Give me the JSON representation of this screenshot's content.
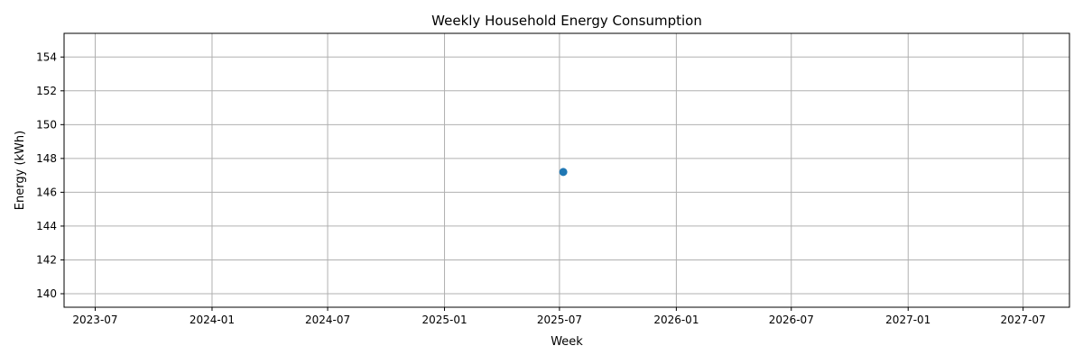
{
  "chart_data": {
    "type": "scatter",
    "title": "Weekly Household Energy Consumption",
    "xlabel": "Week",
    "ylabel": "Energy (kWh)",
    "x_type": "date",
    "xlim": [
      "2023-05-13",
      "2027-09-12"
    ],
    "ylim": [
      139.2,
      155.4
    ],
    "x_ticks": [
      "2023-07-01",
      "2024-01-01",
      "2024-07-01",
      "2025-01-01",
      "2025-07-01",
      "2026-01-01",
      "2026-07-01",
      "2027-01-01",
      "2027-07-01"
    ],
    "x_tick_labels": [
      "2023-07",
      "2024-01",
      "2024-07",
      "2025-01",
      "2025-07",
      "2026-01",
      "2026-07",
      "2027-01",
      "2027-07"
    ],
    "y_ticks": [
      140,
      142,
      144,
      146,
      148,
      150,
      152,
      154
    ],
    "y_tick_labels": [
      "140",
      "142",
      "144",
      "146",
      "148",
      "150",
      "152",
      "154"
    ],
    "grid": true,
    "series": [
      {
        "color": "#1f77b4",
        "marker": "circle",
        "points": [
          {
            "x": "2025-07-07",
            "y": 147.2
          }
        ]
      }
    ]
  }
}
